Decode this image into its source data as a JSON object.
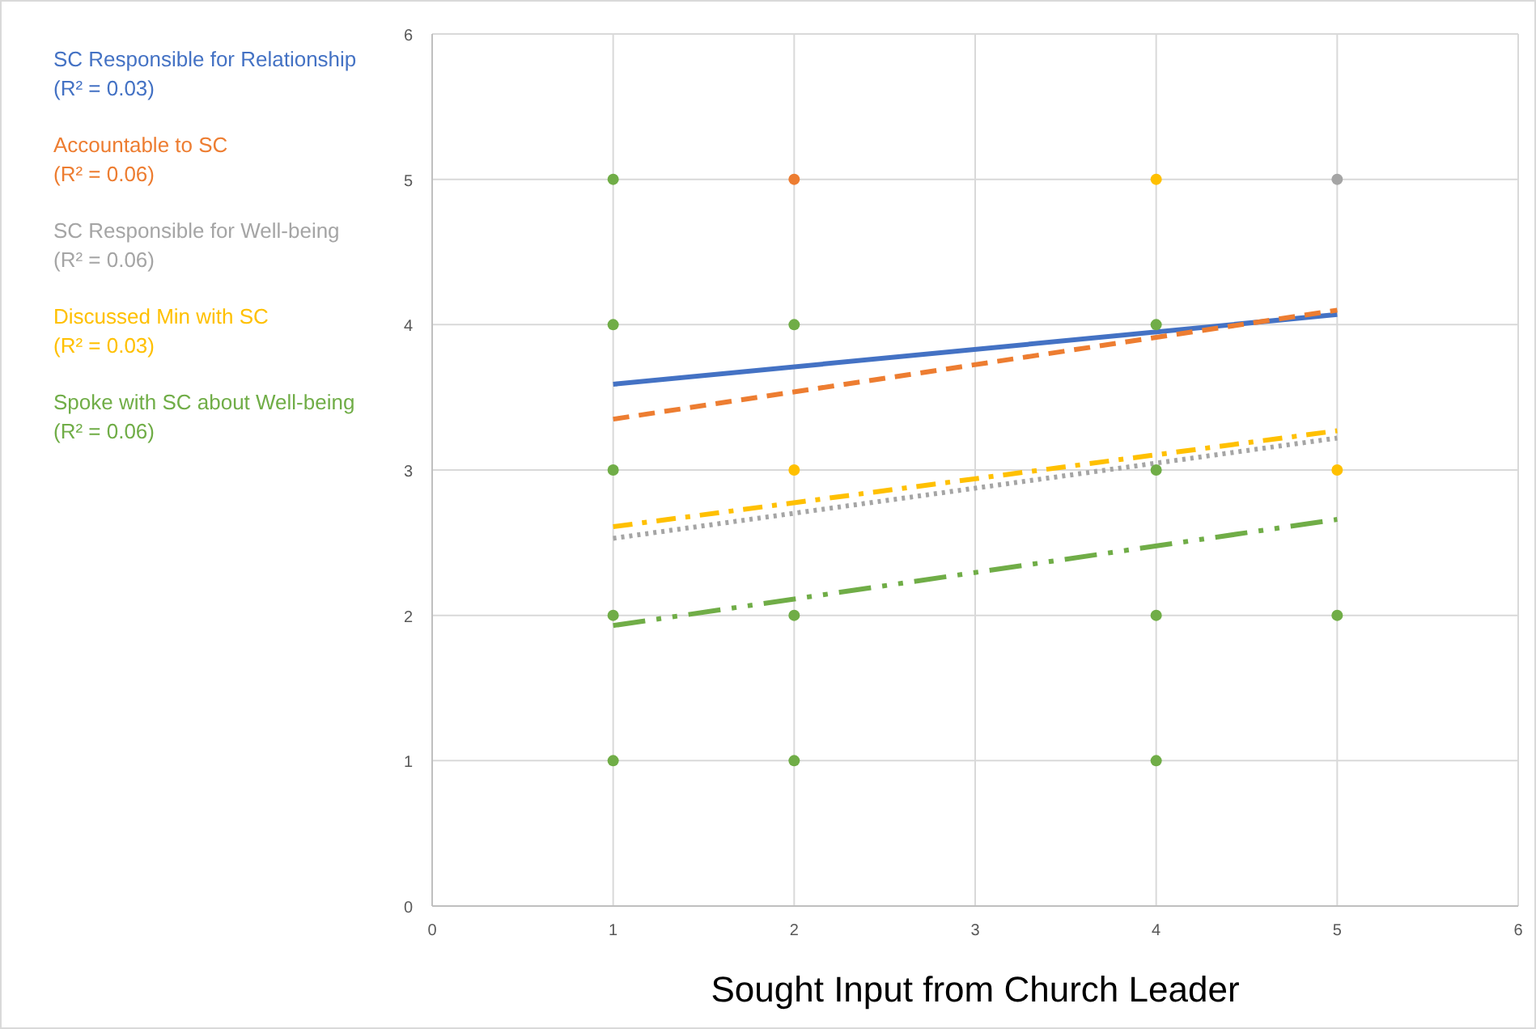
{
  "chart_data": {
    "type": "scatter",
    "xlabel": "Sought Input from Church Leader",
    "xlim": [
      0,
      6
    ],
    "xticks": [
      0,
      1,
      2,
      3,
      4,
      5,
      6
    ],
    "ylim": [
      0,
      6
    ],
    "yticks": [
      0,
      1,
      2,
      3,
      4,
      5,
      6
    ],
    "grid": true,
    "legend": "left",
    "series": [
      {
        "marker": "circle",
        "color": "#70ad47",
        "x": [
          1,
          1,
          1,
          1,
          1,
          2,
          2,
          2,
          4,
          4,
          4,
          4,
          5
        ],
        "values": [
          5,
          4,
          3,
          2,
          1,
          4,
          2,
          1,
          4,
          3,
          2,
          1,
          2
        ]
      },
      {
        "marker": "circle",
        "color": "#ed7d31",
        "x": [
          2
        ],
        "values": [
          5
        ]
      },
      {
        "marker": "circle",
        "color": "#ffc000",
        "x": [
          2,
          4,
          5
        ],
        "values": [
          3,
          5,
          3
        ]
      },
      {
        "marker": "circle",
        "color": "#a5a5a5",
        "x": [
          5
        ],
        "values": [
          5
        ]
      },
      {
        "type": "line",
        "name": "SC Responsible for Relationship",
        "color": "#4472c4",
        "line_style": "solid",
        "x": [
          1,
          5
        ],
        "values": [
          3.59,
          4.07
        ]
      },
      {
        "type": "line",
        "name": "Accountable to SC",
        "color": "#ed7d31",
        "line_style": "dashed",
        "x": [
          1,
          5
        ],
        "values": [
          3.35,
          4.1
        ]
      },
      {
        "type": "line",
        "name": "SC Responsible for Well-being",
        "color": "#a5a5a5",
        "line_style": "dotted",
        "x": [
          1,
          5
        ],
        "values": [
          2.53,
          3.22
        ]
      },
      {
        "type": "line",
        "name": "Discussed Min with SC",
        "color": "#ffc000",
        "line_style": "dashdot",
        "x": [
          1,
          5
        ],
        "values": [
          2.61,
          3.27
        ]
      },
      {
        "type": "line",
        "name": "Spoke with SC about Well-being",
        "color": "#70ad47",
        "line_style": "longdashdotdot",
        "x": [
          1,
          5
        ],
        "values": [
          1.93,
          2.66
        ]
      }
    ],
    "annotations": [
      "(R² = 0.03)",
      "(R² = 0.06)",
      "(R² = 0.06)",
      "(R² = 0.03)",
      "(R² = 0.06)"
    ]
  }
}
